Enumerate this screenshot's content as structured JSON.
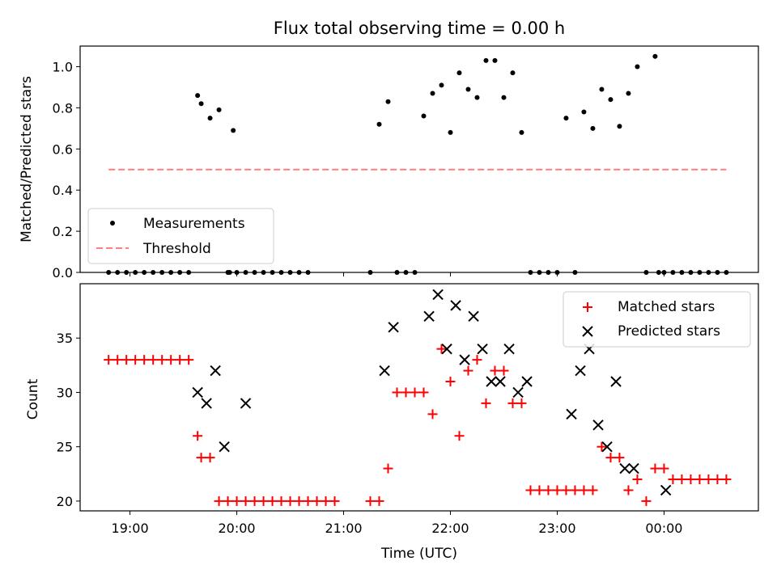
{
  "chart_data": [
    {
      "type": "scatter",
      "title": "Flux total observing time = 0.00 h",
      "xlabel": "",
      "ylabel": "Matched/Predicted stars",
      "ylim": [
        0,
        1.1
      ],
      "yticks": [
        0.0,
        0.2,
        0.4,
        0.6,
        0.8,
        1.0
      ],
      "ytick_labels": [
        "0.0",
        "0.2",
        "0.4",
        "0.6",
        "0.8",
        "1.0"
      ],
      "xlim": [
        "18:32",
        "00:53"
      ],
      "xticks": [
        "19:00",
        "20:00",
        "21:00",
        "22:00",
        "23:00",
        "00:00"
      ],
      "grid": false,
      "legend_position": "lower-left",
      "series": [
        {
          "name": "Measurements",
          "color": "#000000",
          "marker": "dot",
          "x": [
            "18:48",
            "18:53",
            "18:58",
            "19:03",
            "19:08",
            "19:13",
            "19:18",
            "19:23",
            "19:28",
            "19:33",
            "19:38",
            "19:40",
            "19:45",
            "19:50",
            "19:55",
            "19:56",
            "19:58",
            "20:00",
            "20:05",
            "20:10",
            "20:15",
            "20:20",
            "20:25",
            "20:30",
            "20:35",
            "20:40",
            "21:15",
            "21:20",
            "21:25",
            "21:30",
            "21:35",
            "21:40",
            "21:45",
            "21:50",
            "21:55",
            "22:00",
            "22:05",
            "22:10",
            "22:15",
            "22:20",
            "22:25",
            "22:30",
            "22:35",
            "22:40",
            "22:45",
            "22:50",
            "22:55",
            "23:00",
            "23:05",
            "23:10",
            "23:15",
            "23:20",
            "23:25",
            "23:30",
            "23:35",
            "23:40",
            "23:45",
            "23:50",
            "23:55",
            "23:57",
            "00:00",
            "00:05",
            "00:10",
            "00:15",
            "00:20",
            "00:25",
            "00:30",
            "00:35"
          ],
          "values": [
            0,
            0,
            0,
            0,
            0,
            0,
            0,
            0,
            0,
            0,
            0.86,
            0.82,
            0.75,
            0.79,
            0,
            0,
            0.69,
            0,
            0,
            0,
            0,
            0,
            0,
            0,
            0,
            0,
            0,
            0.72,
            0.83,
            0,
            0,
            0,
            0.76,
            0.87,
            0.91,
            0.68,
            0.97,
            0.89,
            0.85,
            1.03,
            1.03,
            0.85,
            0.97,
            0.68,
            0,
            0,
            0,
            0,
            0.75,
            0,
            0.78,
            0.7,
            0.89,
            0.84,
            0.71,
            0.87,
            1.0,
            0,
            1.05,
            0,
            0,
            0,
            0,
            0,
            0,
            0,
            0,
            0
          ]
        },
        {
          "name": "Threshold",
          "color": "#ff7f7f",
          "style": "dashed",
          "x": [
            "18:48",
            "00:35"
          ],
          "values": [
            0.5,
            0.5
          ]
        }
      ]
    },
    {
      "type": "scatter",
      "title": "",
      "xlabel": "Time (UTC)",
      "ylabel": "Count",
      "ylim": [
        19.1,
        40
      ],
      "yticks": [
        20,
        25,
        30,
        35
      ],
      "ytick_labels": [
        "20",
        "25",
        "30",
        "35"
      ],
      "xlim": [
        "18:32",
        "00:53"
      ],
      "xticks": [
        "19:00",
        "20:00",
        "21:00",
        "22:00",
        "23:00",
        "00:00"
      ],
      "grid": false,
      "legend_position": "top-right",
      "series": [
        {
          "name": "Matched stars",
          "color": "#ff0000",
          "marker": "plus",
          "x": [
            "18:48",
            "18:53",
            "18:58",
            "19:03",
            "19:08",
            "19:13",
            "19:18",
            "19:23",
            "19:28",
            "19:33",
            "19:38",
            "19:40",
            "19:45",
            "19:50",
            "19:55",
            "20:00",
            "20:05",
            "20:10",
            "20:15",
            "20:20",
            "20:25",
            "20:30",
            "20:35",
            "20:40",
            "20:45",
            "20:50",
            "20:55",
            "21:15",
            "21:20",
            "21:25",
            "21:30",
            "21:35",
            "21:40",
            "21:45",
            "21:50",
            "21:55",
            "22:00",
            "22:05",
            "22:10",
            "22:15",
            "22:20",
            "22:25",
            "22:30",
            "22:35",
            "22:40",
            "22:45",
            "22:50",
            "22:55",
            "23:00",
            "23:05",
            "23:10",
            "23:15",
            "23:20",
            "23:25",
            "23:30",
            "23:35",
            "23:40",
            "23:45",
            "23:50",
            "23:55",
            "00:00",
            "00:05",
            "00:10",
            "00:15",
            "00:20",
            "00:25",
            "00:30",
            "00:35"
          ],
          "values": [
            33,
            33,
            33,
            33,
            33,
            33,
            33,
            33,
            33,
            33,
            26,
            24,
            24,
            20,
            20,
            20,
            20,
            20,
            20,
            20,
            20,
            20,
            20,
            20,
            20,
            20,
            20,
            20,
            20,
            23,
            30,
            30,
            30,
            30,
            28,
            34,
            31,
            26,
            32,
            33,
            29,
            32,
            32,
            29,
            29,
            21,
            21,
            21,
            21,
            21,
            21,
            21,
            21,
            25,
            24,
            24,
            21,
            22,
            20,
            23,
            23,
            22,
            22,
            22,
            22,
            22,
            22,
            22
          ]
        },
        {
          "name": "Predicted stars",
          "color": "#000000",
          "marker": "x",
          "x": [
            "19:38",
            "19:43",
            "19:48",
            "19:53",
            "20:05",
            "21:23",
            "21:28",
            "21:48",
            "21:53",
            "21:58",
            "22:03",
            "22:08",
            "22:13",
            "22:18",
            "22:23",
            "22:28",
            "22:33",
            "22:38",
            "22:43",
            "23:08",
            "23:13",
            "23:18",
            "23:23",
            "23:28",
            "23:33",
            "23:38",
            "23:43",
            "00:01"
          ],
          "values": [
            30,
            29,
            32,
            25,
            29,
            32,
            36,
            37,
            39,
            34,
            38,
            33,
            37,
            34,
            31,
            31,
            34,
            30,
            31,
            28,
            32,
            34,
            27,
            25,
            31,
            23,
            23,
            21
          ]
        }
      ]
    }
  ]
}
